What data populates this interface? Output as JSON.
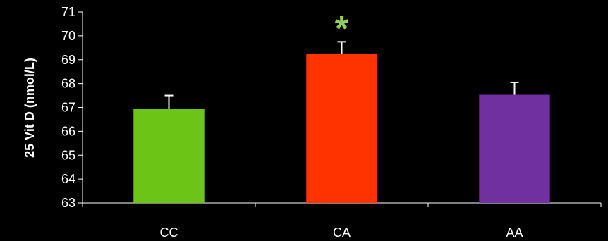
{
  "chart_data": {
    "type": "bar",
    "categories": [
      "CC",
      "CA",
      "AA"
    ],
    "values": [
      66.93,
      69.23,
      67.53
    ],
    "error_upper": [
      67.5,
      69.75,
      68.05
    ],
    "ylabel": "25 Vit D (nmol/L)",
    "xlabel": "",
    "ylim": [
      63,
      71
    ],
    "yticks": [
      63,
      64,
      65,
      66,
      67,
      68,
      69,
      70,
      71
    ],
    "bar_colors": [
      "#6cc417",
      "#ff3300",
      "#7030a0"
    ],
    "significance": [
      {
        "category": "CA",
        "marker": "*",
        "color": "#92d050"
      }
    ],
    "grid": false,
    "legend": "none",
    "background": "#000000",
    "axis_color": "#ffffff"
  }
}
